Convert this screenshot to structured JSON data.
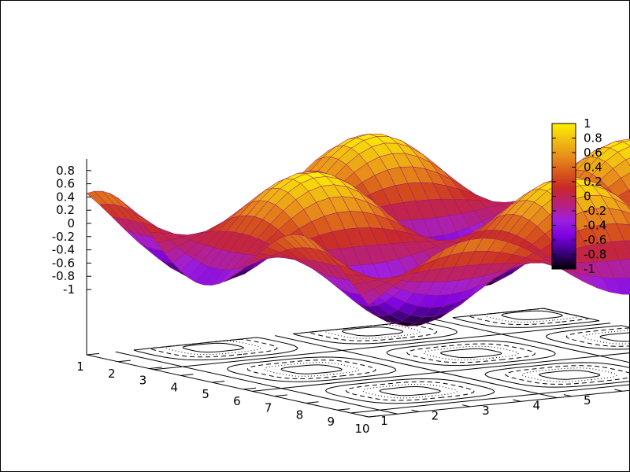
{
  "chart_data": {
    "type": "surface",
    "function": "sin(x)*cos(y)",
    "x_range": [
      1,
      10
    ],
    "y_range": [
      1,
      10
    ],
    "z_range": [
      -1,
      1
    ],
    "x_ticks": [
      "1",
      "2",
      "3",
      "4",
      "5",
      "6",
      "7",
      "8",
      "9",
      "10"
    ],
    "y_ticks": [
      "1",
      "2",
      "3",
      "4",
      "5",
      "6",
      "7",
      "8",
      "9",
      "10"
    ],
    "z_ticks": [
      "0.8",
      "0.6",
      "0.4",
      "0.2",
      "0",
      "-0.2",
      "-0.4",
      "-0.6",
      "-0.8",
      "-1"
    ],
    "colorbar_ticks": [
      "1",
      "0.8",
      "0.6",
      "0.4",
      "0.2",
      "0",
      "-0.2",
      "-0.4",
      "-0.6",
      "-0.8",
      "-1"
    ],
    "colormap": [
      "#000000",
      "#3a007a",
      "#7a00e0",
      "#9e1fe0",
      "#b8207a",
      "#c8282a",
      "#d85a1a",
      "#e8901a",
      "#f0c010",
      "#ffee00"
    ],
    "base_contours": true,
    "surface_contours": true,
    "grid": false,
    "colorbar_position": "right"
  }
}
